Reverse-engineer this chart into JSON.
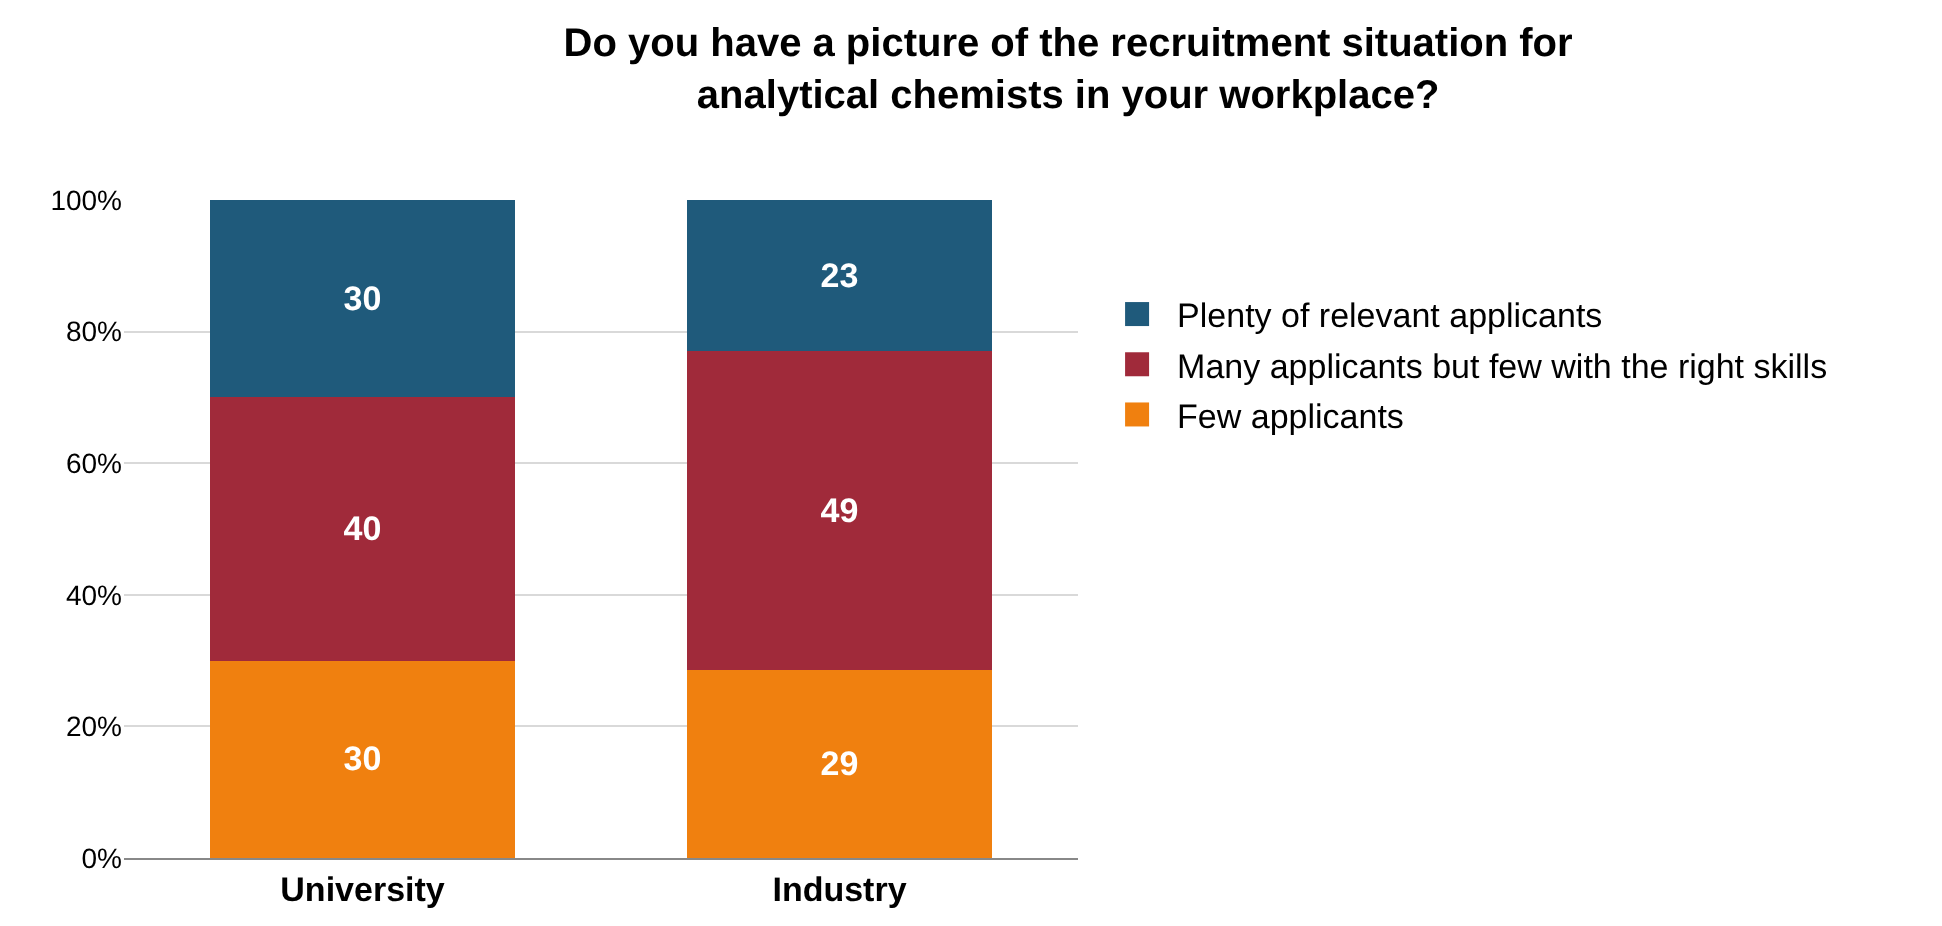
{
  "chart_data": {
    "type": "bar",
    "title": "Do you have a picture of the recruitment situation for analytical chemists in your workplace?",
    "categories": [
      "University",
      "Industry"
    ],
    "stacked": true,
    "series": [
      {
        "name": "Few applicants",
        "color": "#f0800f",
        "values": [
          30,
          28.5
        ],
        "value_labels": [
          "30",
          "29"
        ]
      },
      {
        "name": "Many applicants but few with the right skills",
        "color": "#a02a3a",
        "values": [
          40,
          48.5
        ],
        "value_labels": [
          "40",
          "49"
        ]
      },
      {
        "name": "Plenty of relevant applicants",
        "color": "#1f5a7b",
        "values": [
          30,
          23
        ],
        "value_labels": [
          "30",
          "23"
        ]
      }
    ],
    "ylim": [
      0,
      100
    ],
    "yticks": [
      {
        "value": 0,
        "label": "0%"
      },
      {
        "value": 20,
        "label": "20%"
      },
      {
        "value": 40,
        "label": "40%"
      },
      {
        "value": 60,
        "label": "60%"
      },
      {
        "value": 80,
        "label": "80%"
      },
      {
        "value": 100,
        "label": "100%"
      }
    ],
    "grid": "y",
    "legend": "right"
  }
}
